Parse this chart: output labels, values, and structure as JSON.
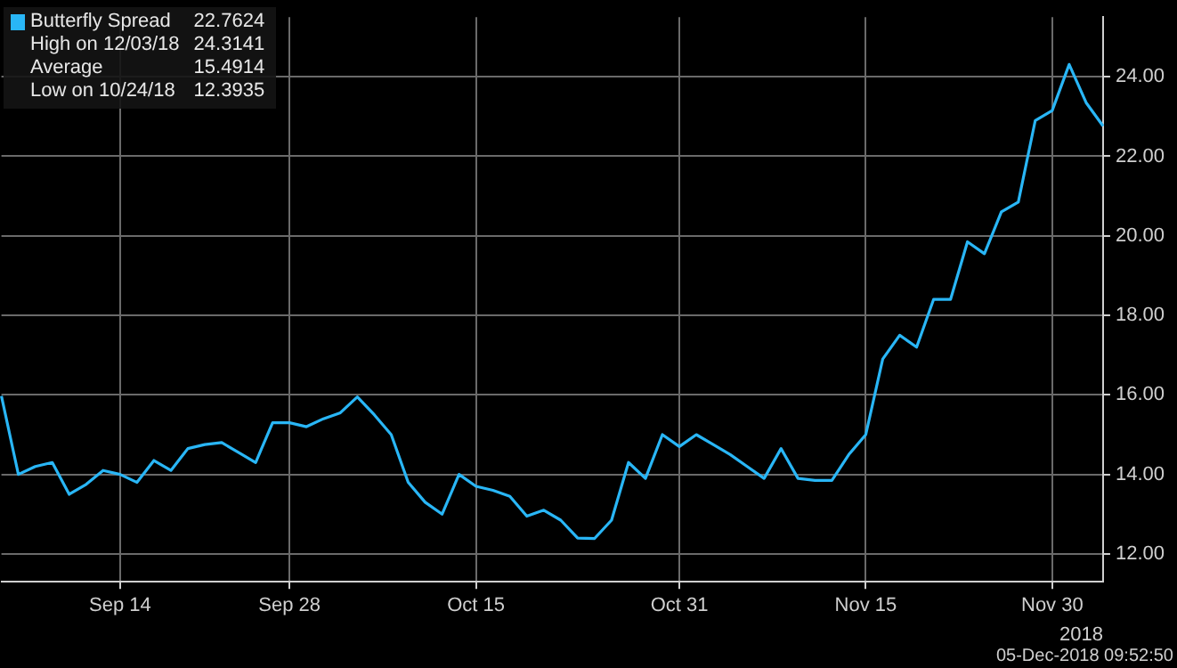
{
  "chart_data": {
    "type": "line",
    "xlabel": "2018",
    "categories": [
      null,
      null,
      null,
      null,
      null,
      null,
      null,
      "Sep 14",
      null,
      null,
      null,
      null,
      null,
      null,
      null,
      null,
      null,
      "Sep 28",
      null,
      null,
      null,
      null,
      null,
      null,
      null,
      null,
      null,
      null,
      "Oct 15",
      null,
      null,
      null,
      null,
      null,
      null,
      null,
      null,
      null,
      null,
      null,
      "Oct 31",
      null,
      null,
      null,
      null,
      null,
      null,
      null,
      null,
      null,
      null,
      "Nov 15",
      null,
      null,
      null,
      null,
      null,
      null,
      null,
      null,
      null,
      null,
      "Nov 30",
      null,
      null,
      null
    ],
    "series": [
      {
        "name": "Butterfly Spread",
        "color": "#29b6f6",
        "values": [
          15.97,
          14.0,
          14.2,
          14.3,
          13.5,
          13.75,
          14.1,
          14.0,
          13.8,
          14.35,
          14.1,
          14.65,
          14.75,
          14.8,
          14.55,
          14.3,
          15.3,
          15.3,
          15.2,
          15.4,
          15.55,
          15.95,
          15.5,
          15.0,
          13.8,
          13.3,
          13.0,
          14.0,
          13.7,
          13.6,
          13.45,
          12.95,
          13.1,
          12.85,
          12.4,
          12.39,
          12.85,
          14.3,
          13.9,
          15.0,
          14.7,
          15.0,
          14.75,
          14.5,
          14.2,
          13.9,
          14.65,
          13.9,
          13.85,
          13.85,
          14.5,
          15.0,
          16.9,
          17.5,
          17.2,
          18.4,
          18.4,
          19.85,
          19.55,
          20.6,
          20.85,
          22.9,
          23.15,
          24.31,
          23.35,
          22.76
        ]
      }
    ],
    "ylim": [
      11.3,
      25.5
    ],
    "yticks": [
      {
        "value": 12,
        "label": "12.00"
      },
      {
        "value": 14,
        "label": "14.00"
      },
      {
        "value": 16,
        "label": "16.00"
      },
      {
        "value": 18,
        "label": "18.00"
      },
      {
        "value": 20,
        "label": "20.00"
      },
      {
        "value": 22,
        "label": "22.00"
      },
      {
        "value": 24,
        "label": "24.00"
      }
    ],
    "grid": true,
    "legend": "top left",
    "marker": "none",
    "line_style": "solid",
    "annotations": [
      "22.7624",
      "High on 12/03/18 24.3141",
      "Average 15.4914",
      "Low on 10/24/18 12.3935",
      "05-Dec-2018 09:52:50"
    ]
  }
}
